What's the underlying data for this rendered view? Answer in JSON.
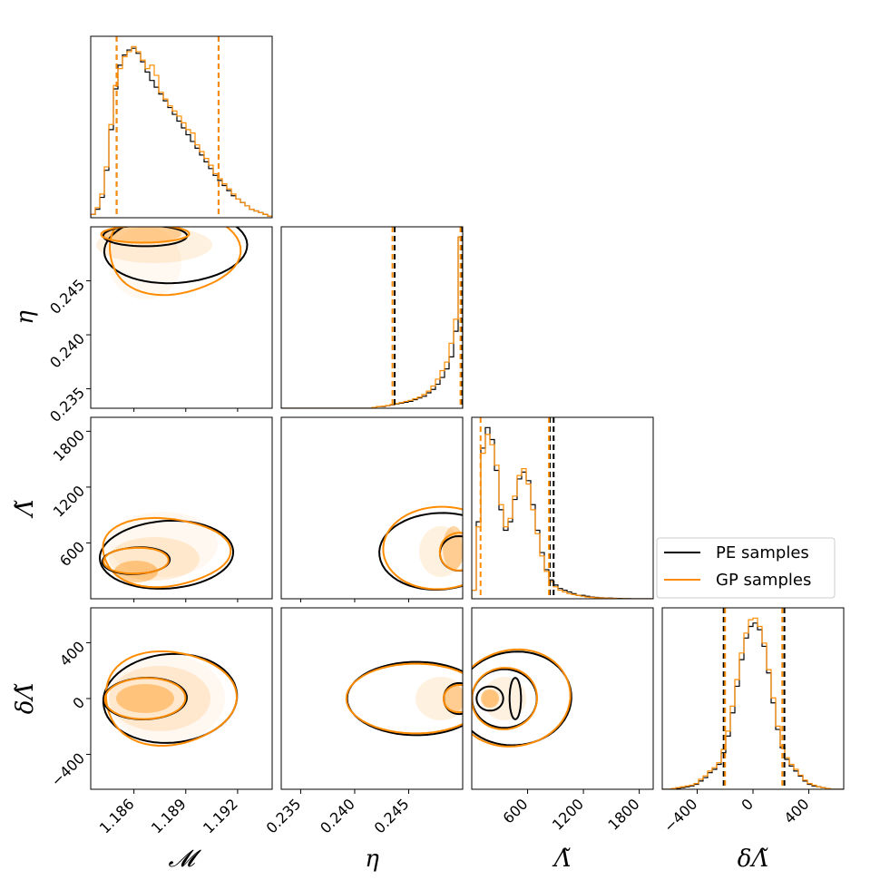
{
  "chart_data": {
    "type": "corner",
    "title": "",
    "colors": {
      "pe": "#000000",
      "gp": "#ff8c00",
      "fill": "#ff8c00"
    },
    "parameters": [
      {
        "key": "mc",
        "label": "𝓜",
        "range": [
          1.1835,
          1.194
        ],
        "ticks": [
          1.186,
          1.189,
          1.192
        ],
        "tick_labels": [
          "1.186",
          "1.189",
          "1.192"
        ]
      },
      {
        "key": "eta",
        "label": "η",
        "range": [
          0.2332,
          0.25
        ],
        "ticks": [
          0.235,
          0.24,
          0.245
        ],
        "tick_labels": [
          "0.235",
          "0.240",
          "0.245"
        ]
      },
      {
        "key": "lt",
        "label": "Λ̃",
        "range": [
          0,
          1950
        ],
        "ticks": [
          600,
          1200,
          1800
        ],
        "tick_labels": [
          "600",
          "1200",
          "1800"
        ]
      },
      {
        "key": "dlt",
        "label": "δΛ̃",
        "range": [
          -650,
          650
        ],
        "ticks": [
          -400,
          0,
          400
        ],
        "tick_labels": [
          "−400",
          "0",
          "400"
        ]
      }
    ],
    "quantiles": {
      "pe": [
        [
          1.185,
          1.1909
        ],
        [
          0.2437,
          0.2499
        ],
        [
          840,
          880
        ],
        [
          -210,
          225
        ]
      ],
      "gp": [
        [
          1.185,
          1.1909
        ],
        [
          0.2435,
          0.2498
        ],
        [
          95,
          830
        ],
        [
          -200,
          210
        ]
      ]
    },
    "marginals": {
      "mc": {
        "pe": [
          0.02,
          0.05,
          0.12,
          0.28,
          0.52,
          0.76,
          0.9,
          0.96,
          0.99,
          1.0,
          0.97,
          0.92,
          0.86,
          0.81,
          0.77,
          0.73,
          0.69,
          0.65,
          0.61,
          0.57,
          0.53,
          0.49,
          0.45,
          0.41,
          0.37,
          0.33,
          0.29,
          0.25,
          0.22,
          0.19,
          0.16,
          0.13,
          0.11,
          0.09,
          0.07,
          0.05,
          0.04,
          0.03,
          0.02,
          0.01
        ],
        "gp": [
          0.02,
          0.06,
          0.14,
          0.3,
          0.55,
          0.78,
          0.88,
          0.95,
          0.98,
          1.01,
          0.98,
          0.93,
          0.88,
          0.9,
          0.84,
          0.74,
          0.7,
          0.66,
          0.63,
          0.6,
          0.56,
          0.52,
          0.5,
          0.43,
          0.39,
          0.35,
          0.31,
          0.26,
          0.23,
          0.2,
          0.17,
          0.14,
          0.11,
          0.09,
          0.07,
          0.05,
          0.04,
          0.03,
          0.02,
          0.01
        ]
      },
      "eta": {
        "pe": [
          0.0,
          0.0,
          0.0,
          0.0,
          0.0,
          0.0,
          0.0,
          0.0,
          0.0,
          0.0,
          0.0,
          0.0,
          0.0,
          0.0,
          0.0,
          0.0,
          0.0,
          0.0,
          0.0,
          0.0,
          0.005,
          0.01,
          0.01,
          0.015,
          0.02,
          0.025,
          0.03,
          0.035,
          0.04,
          0.05,
          0.06,
          0.07,
          0.09,
          0.11,
          0.14,
          0.18,
          0.23,
          0.3,
          0.45,
          1.0
        ],
        "gp": [
          0.0,
          0.0,
          0.0,
          0.0,
          0.0,
          0.0,
          0.0,
          0.0,
          0.0,
          0.0,
          0.0,
          0.0,
          0.0,
          0.0,
          0.0,
          0.0,
          0.0,
          0.0,
          0.0,
          0.0,
          0.005,
          0.01,
          0.012,
          0.016,
          0.022,
          0.027,
          0.033,
          0.04,
          0.046,
          0.055,
          0.065,
          0.08,
          0.1,
          0.13,
          0.17,
          0.22,
          0.27,
          0.38,
          0.52,
          1.0
        ]
      },
      "lt": {
        "pe": [
          0.05,
          0.45,
          0.88,
          1.0,
          0.93,
          0.75,
          0.52,
          0.4,
          0.45,
          0.58,
          0.7,
          0.74,
          0.69,
          0.55,
          0.4,
          0.27,
          0.17,
          0.11,
          0.08,
          0.06,
          0.05,
          0.04,
          0.03,
          0.02,
          0.02,
          0.015,
          0.01,
          0.008,
          0.006,
          0.005,
          0.004,
          0.003,
          0.002,
          0.001,
          0.001,
          0,
          0,
          0,
          0,
          0
        ],
        "gp": [
          0.05,
          0.42,
          0.85,
          0.96,
          0.9,
          0.78,
          0.55,
          0.42,
          0.47,
          0.6,
          0.72,
          0.76,
          0.67,
          0.52,
          0.38,
          0.25,
          0.16,
          0.1,
          0.07,
          0.05,
          0.04,
          0.03,
          0.025,
          0.02,
          0.015,
          0.01,
          0.008,
          0.006,
          0.005,
          0.004,
          0.003,
          0.002,
          0.001,
          0.001,
          0,
          0,
          0,
          0,
          0,
          0
        ]
      },
      "dlt": {
        "pe": [
          0.0,
          0.0,
          0.0,
          0.005,
          0.01,
          0.015,
          0.02,
          0.03,
          0.05,
          0.07,
          0.1,
          0.12,
          0.15,
          0.22,
          0.32,
          0.46,
          0.62,
          0.78,
          0.91,
          0.98,
          1.0,
          0.96,
          0.86,
          0.7,
          0.52,
          0.36,
          0.25,
          0.18,
          0.14,
          0.11,
          0.08,
          0.05,
          0.03,
          0.02,
          0.015,
          0.01,
          0.005,
          0,
          0,
          0
        ],
        "gp": [
          0.0,
          0.0,
          0.005,
          0.01,
          0.015,
          0.02,
          0.025,
          0.035,
          0.06,
          0.08,
          0.11,
          0.13,
          0.16,
          0.24,
          0.35,
          0.5,
          0.66,
          0.82,
          0.94,
          1.02,
          1.03,
          0.98,
          0.88,
          0.72,
          0.55,
          0.38,
          0.26,
          0.19,
          0.15,
          0.12,
          0.085,
          0.055,
          0.035,
          0.025,
          0.015,
          0.01,
          0.005,
          0,
          0,
          0
        ]
      }
    },
    "legend": {
      "location": "right of Λ̃ marginal",
      "entries": [
        "PE samples",
        "GP samples"
      ]
    }
  }
}
